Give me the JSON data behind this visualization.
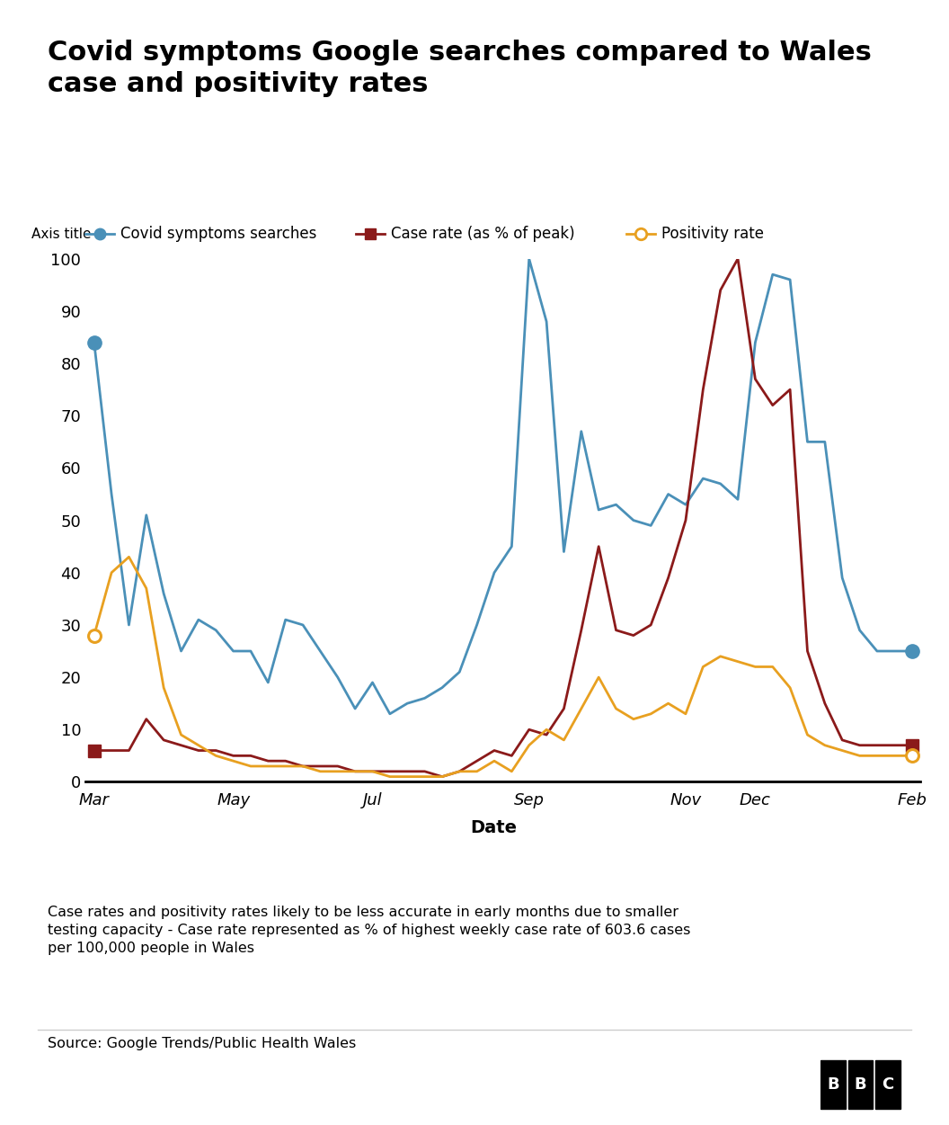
{
  "title": "Covid symptoms Google searches compared to Wales\ncase and positivity rates",
  "ylabel": "Axis title",
  "xlabel": "Date",
  "footnote": "Case rates and positivity rates likely to be less accurate in early months due to smaller\ntesting capacity - Case rate represented as % of highest weekly case rate of 603.6 cases\nper 100,000 people in Wales",
  "source": "Source: Google Trends/Public Health Wales",
  "legend": [
    "Covid symptoms searches",
    "Case rate (as % of peak)",
    "Positivity rate"
  ],
  "colors": [
    "#4a90b8",
    "#8b1a1a",
    "#e8a020"
  ],
  "x_tick_labels": [
    "Mar",
    "May",
    "Jul",
    "Sep",
    "Nov",
    "Dec",
    "Feb"
  ],
  "x_tick_positions": [
    0,
    8,
    16,
    25,
    34,
    38,
    47
  ],
  "covid_searches": [
    84,
    55,
    30,
    51,
    36,
    25,
    31,
    29,
    25,
    25,
    19,
    31,
    30,
    25,
    20,
    14,
    19,
    13,
    15,
    16,
    18,
    21,
    30,
    40,
    45,
    100,
    88,
    44,
    67,
    52,
    53,
    50,
    49,
    55,
    53,
    58,
    57,
    54,
    84,
    97,
    96,
    65,
    65,
    39,
    29,
    25,
    25,
    25
  ],
  "case_rate": [
    6,
    6,
    6,
    12,
    8,
    7,
    6,
    6,
    5,
    5,
    4,
    4,
    3,
    3,
    3,
    2,
    2,
    2,
    2,
    2,
    1,
    2,
    4,
    6,
    5,
    10,
    9,
    14,
    29,
    45,
    29,
    28,
    30,
    39,
    50,
    75,
    94,
    100,
    77,
    72,
    75,
    25,
    15,
    8,
    7,
    7,
    7,
    7
  ],
  "positivity": [
    28,
    40,
    43,
    37,
    18,
    9,
    7,
    5,
    4,
    3,
    3,
    3,
    3,
    2,
    2,
    2,
    2,
    1,
    1,
    1,
    1,
    2,
    2,
    4,
    2,
    7,
    10,
    8,
    14,
    20,
    14,
    12,
    13,
    15,
    13,
    22,
    24,
    23,
    22,
    22,
    18,
    9,
    7,
    6,
    5,
    5,
    5,
    5
  ],
  "ylim": [
    0,
    100
  ],
  "yticks": [
    0,
    10,
    20,
    30,
    40,
    50,
    60,
    70,
    80,
    90,
    100
  ],
  "background_color": "#ffffff"
}
